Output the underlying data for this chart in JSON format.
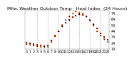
{
  "title": "Milw. Weather Outdoor Temp   Heat Index  (24 Hours)",
  "background_color": "#ffffff",
  "plot_bg": "#ffffff",
  "grid_color": "#aaaaaa",
  "hours": [
    0,
    1,
    2,
    3,
    4,
    5,
    6,
    7,
    8,
    9,
    10,
    11,
    12,
    13,
    14,
    15,
    16,
    17,
    18,
    19,
    20,
    21,
    22,
    23
  ],
  "temp": [
    24,
    23,
    22,
    21,
    20,
    19,
    20,
    28,
    36,
    44,
    52,
    58,
    63,
    67,
    70,
    72,
    71,
    68,
    63,
    56,
    48,
    40,
    34,
    29
  ],
  "heat_index": [
    22,
    21,
    20,
    19,
    18,
    17,
    18,
    26,
    35,
    44,
    54,
    62,
    68,
    73,
    77,
    75,
    73,
    68,
    61,
    53,
    44,
    37,
    31,
    26
  ],
  "temp_color": "#ff0000",
  "heat_color": "#ff8c00",
  "black_color": "#000000",
  "ylim": [
    14,
    78
  ],
  "yticks": [
    14,
    24,
    34,
    44,
    54,
    64,
    74
  ],
  "vgrid_hours": [
    3,
    6,
    9,
    12,
    15,
    18,
    21
  ],
  "title_fontsize": 4.5,
  "tick_fontsize": 3.5,
  "marker_size": 2.5,
  "small_marker": 1.2
}
